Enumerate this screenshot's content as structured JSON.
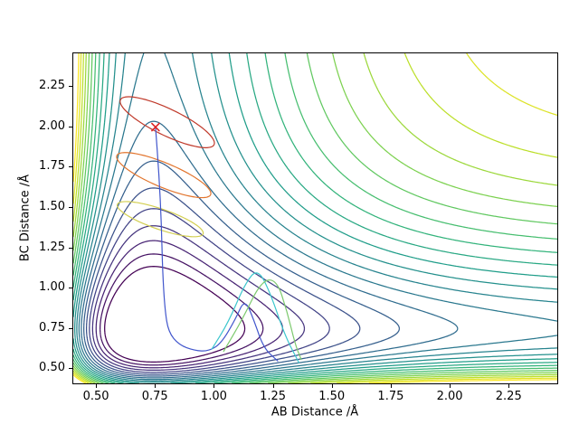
{
  "figure": {
    "background": "#ffffff",
    "text_color": "#000000",
    "spine_color": "#000000"
  },
  "axes": {
    "xlabel": "AB Distance /Å",
    "ylabel": "BC Distance /Å",
    "xlim": [
      0.4,
      2.46
    ],
    "ylim": [
      0.4,
      2.46
    ],
    "xticks": [
      0.5,
      0.75,
      1.0,
      1.25,
      1.5,
      1.75,
      2.0,
      2.25
    ],
    "yticks": [
      0.5,
      0.75,
      1.0,
      1.25,
      1.5,
      1.75,
      2.0,
      2.25
    ],
    "tick_decimals": 2
  },
  "chart_data": {
    "type": "contour",
    "title": "",
    "xlabel": "AB Distance /Å",
    "ylabel": "BC Distance /Å",
    "x_range": [
      0.4,
      2.46
    ],
    "y_range": [
      0.4,
      2.46
    ],
    "surface": {
      "description": "Potential energy surface V(rAB,rBC) = (1-exp(-a(rAB-r0)))^2 + (1-exp(-a(rBC-r0)))^2",
      "a": 2.15,
      "r0": 0.742
    },
    "levels": {
      "min": 0.32,
      "max": 1.92,
      "count": 21
    },
    "colormap": {
      "name": "viridis",
      "stops": [
        "#440154",
        "#482878",
        "#3e4989",
        "#31688e",
        "#26828e",
        "#1f9e89",
        "#35b779",
        "#6ece58",
        "#b5de2b",
        "#fde725"
      ]
    },
    "trajectory": {
      "start_marker": {
        "x": 0.75,
        "y": 2.0,
        "symbol": "x",
        "color": "#dd2222"
      },
      "segments": [
        {
          "kind": "ellipse",
          "color": "#c03a2b",
          "cx": 0.8,
          "cy": 2.03,
          "rx": 0.245,
          "ry": 0.075,
          "angle_deg": -37
        },
        {
          "kind": "ellipse",
          "color": "#e2752e",
          "cx": 0.785,
          "cy": 1.7,
          "rx": 0.235,
          "ry": 0.07,
          "angle_deg": -33
        },
        {
          "kind": "ellipse",
          "color": "#d3cf52",
          "cx": 0.77,
          "cy": 1.425,
          "rx": 0.205,
          "ry": 0.06,
          "angle_deg": -28
        },
        {
          "kind": "polyline",
          "color": "#4156cc",
          "points": [
            [
              0.75,
              2.0
            ],
            [
              0.765,
              1.7
            ],
            [
              0.775,
              1.4
            ],
            [
              0.78,
              1.1
            ],
            [
              0.79,
              0.86
            ],
            [
              0.805,
              0.72
            ],
            [
              0.85,
              0.64
            ],
            [
              0.915,
              0.605
            ],
            [
              0.975,
              0.6
            ],
            [
              1.03,
              0.65
            ],
            [
              1.09,
              0.8
            ],
            [
              1.13,
              0.93
            ],
            [
              1.17,
              0.79
            ],
            [
              1.21,
              0.62
            ],
            [
              1.27,
              0.54
            ]
          ]
        },
        {
          "kind": "polyline",
          "color": "#3bc6cd",
          "points": [
            [
              0.99,
              0.615
            ],
            [
              1.06,
              0.78
            ],
            [
              1.13,
              1.02
            ],
            [
              1.185,
              1.12
            ],
            [
              1.24,
              0.96
            ],
            [
              1.3,
              0.7
            ],
            [
              1.36,
              0.53
            ]
          ]
        },
        {
          "kind": "polyline",
          "color": "#7cc96d",
          "points": [
            [
              1.04,
              0.6
            ],
            [
              1.12,
              0.8
            ],
            [
              1.2,
              1.04
            ],
            [
              1.265,
              1.05
            ],
            [
              1.31,
              0.85
            ],
            [
              1.345,
              0.64
            ],
            [
              1.37,
              0.55
            ]
          ]
        }
      ]
    }
  }
}
